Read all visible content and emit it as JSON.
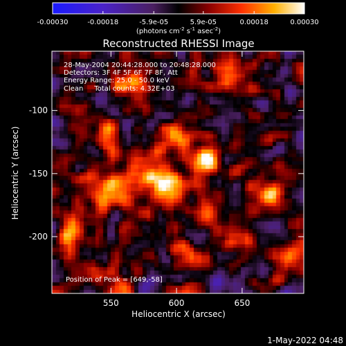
{
  "chart_data": {
    "type": "heatmap",
    "title": "Reconstructed RHESSI Image",
    "xlabel": "Heliocentric X (arcsec)",
    "ylabel": "Heliocentric Y (arcsec)",
    "xlim": [
      505,
      697
    ],
    "ylim": [
      -245,
      -53
    ],
    "xticks": [
      550,
      600,
      650
    ],
    "yticks": [
      -100,
      -150,
      -200
    ],
    "colorbar": {
      "range": [
        -0.0003,
        0.0003
      ],
      "tick_labels": [
        "-0.00030",
        "-0.00018",
        "-5.9e-05",
        "5.9e-05",
        "0.00018",
        "0.00030"
      ],
      "tick_values": [
        -0.0003,
        -0.00018,
        -5.9e-05,
        5.9e-05,
        0.00018,
        0.0003
      ],
      "unit_label": "(photons cm",
      "unit_sup1": "-2",
      "unit_mid": " s",
      "unit_sup2": "-1",
      "unit_mid2": " asec",
      "unit_sup3": "-2",
      "unit_end": ")"
    },
    "info_lines": [
      "28-May-2004 20:44:28.000 to 20:48:28.000",
      "Detectors: 3F 4F 5F 6F 7F 8F, Att",
      "Energy Range: 25.0 - 50.0 keV",
      "Clean     Total counts: 4.32E+03"
    ],
    "peak_label": "Position of Peak = [649,-58]",
    "peak_position": [
      649,
      -58
    ],
    "bright_sources": [
      {
        "x": 592,
        "y": -158,
        "value": 0.0003
      },
      {
        "x": 575,
        "y": -150,
        "value": 0.00026
      },
      {
        "x": 623,
        "y": -140,
        "value": 0.00027
      },
      {
        "x": 553,
        "y": -160,
        "value": 0.00022
      },
      {
        "x": 600,
        "y": -125,
        "value": 0.0002
      },
      {
        "x": 518,
        "y": -198,
        "value": 0.00022
      },
      {
        "x": 640,
        "y": -72,
        "value": 0.0002
      },
      {
        "x": 650,
        "y": -205,
        "value": 0.00018
      },
      {
        "x": 560,
        "y": -78,
        "value": 0.00016
      },
      {
        "x": 545,
        "y": -120,
        "value": 0.00014
      },
      {
        "x": 672,
        "y": -170,
        "value": 0.00014
      },
      {
        "x": 610,
        "y": -215,
        "value": 0.00012
      },
      {
        "x": 540,
        "y": -232,
        "value": 0.0001
      },
      {
        "x": 688,
        "y": -225,
        "value": 0.00012
      },
      {
        "x": 625,
        "y": -180,
        "value": 0.00013
      }
    ]
  },
  "footer": {
    "timestamp": "1-May-2022 04:48"
  }
}
